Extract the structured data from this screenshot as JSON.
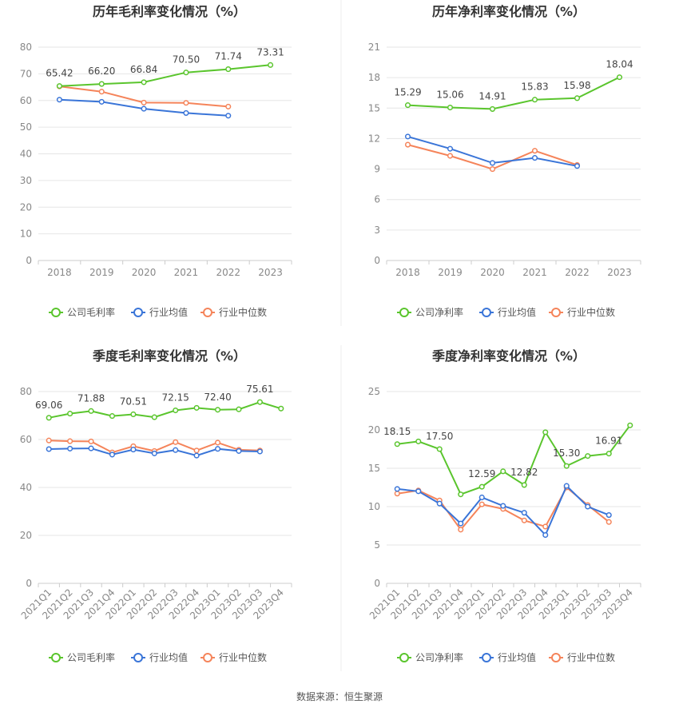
{
  "source": "数据来源：恒生聚源",
  "colors": {
    "company": "#5ac52d",
    "avg": "#3a75d8",
    "median": "#f5845a",
    "grid": "#e6e6e6",
    "axis": "#cccccc"
  },
  "legend_icon": "circle-line-marker",
  "chart_data": [
    {
      "type": "line",
      "title": "历年毛利率变化情况（%）",
      "categories": [
        "2018",
        "2019",
        "2020",
        "2021",
        "2022",
        "2023"
      ],
      "ylim": [
        0,
        80
      ],
      "yticks": [
        0,
        10,
        20,
        30,
        40,
        50,
        60,
        70,
        80
      ],
      "grid": true,
      "legend_position": "bottom",
      "series": [
        {
          "name": "公司毛利率",
          "values": [
            65.42,
            66.2,
            66.84,
            70.5,
            71.74,
            73.31
          ],
          "labels": [
            "65.42",
            "66.20",
            "66.84",
            "70.50",
            "71.74",
            "73.31"
          ]
        },
        {
          "name": "行业均值",
          "values": [
            60.3,
            59.5,
            56.9,
            55.3,
            54.3,
            null
          ]
        },
        {
          "name": "行业中位数",
          "values": [
            65.3,
            63.3,
            59.2,
            59.1,
            57.7,
            null
          ]
        }
      ]
    },
    {
      "type": "line",
      "title": "历年净利率变化情况（%）",
      "categories": [
        "2018",
        "2019",
        "2020",
        "2021",
        "2022",
        "2023"
      ],
      "ylim": [
        0,
        21
      ],
      "yticks": [
        0,
        3,
        6,
        9,
        12,
        15,
        18,
        21
      ],
      "grid": true,
      "legend_position": "bottom",
      "series": [
        {
          "name": "公司净利率",
          "values": [
            15.29,
            15.06,
            14.91,
            15.83,
            15.98,
            18.04
          ],
          "labels": [
            "15.29",
            "15.06",
            "14.91",
            "15.83",
            "15.98",
            "18.04"
          ]
        },
        {
          "name": "行业均值",
          "values": [
            12.2,
            11.0,
            9.6,
            10.1,
            9.3,
            null
          ]
        },
        {
          "name": "行业中位数",
          "values": [
            11.4,
            10.3,
            9.0,
            10.8,
            9.4,
            null
          ]
        }
      ]
    },
    {
      "type": "line",
      "title": "季度毛利率变化情况（%）",
      "categories": [
        "2021Q1",
        "2021Q2",
        "2021Q3",
        "2021Q4",
        "2022Q1",
        "2022Q2",
        "2022Q3",
        "2022Q4",
        "2023Q1",
        "2023Q2",
        "2023Q3",
        "2023Q4"
      ],
      "ylim": [
        0,
        80
      ],
      "yticks": [
        0,
        20,
        40,
        60,
        80
      ],
      "grid": true,
      "legend_position": "bottom",
      "series": [
        {
          "name": "公司毛利率",
          "values": [
            69.06,
            70.8,
            71.88,
            69.8,
            70.51,
            69.3,
            72.15,
            73.2,
            72.4,
            72.6,
            75.61,
            72.9
          ],
          "labels": [
            "69.06",
            "",
            "71.88",
            "",
            "70.51",
            "",
            "72.15",
            "",
            "72.40",
            "",
            "75.61",
            ""
          ]
        },
        {
          "name": "行业均值",
          "values": [
            56.0,
            56.2,
            56.3,
            53.7,
            55.8,
            54.2,
            55.6,
            53.3,
            56.1,
            55.2,
            55.0,
            null
          ]
        },
        {
          "name": "行业中位数",
          "values": [
            59.6,
            59.3,
            59.2,
            54.6,
            57.2,
            55.2,
            58.9,
            55.4,
            58.7,
            55.7,
            55.4,
            null
          ]
        }
      ]
    },
    {
      "type": "line",
      "title": "季度净利率变化情况（%）",
      "categories": [
        "2021Q1",
        "2021Q2",
        "2021Q3",
        "2021Q4",
        "2022Q1",
        "2022Q2",
        "2022Q3",
        "2022Q4",
        "2023Q1",
        "2023Q2",
        "2023Q3",
        "2023Q4"
      ],
      "ylim": [
        0,
        25
      ],
      "yticks": [
        0,
        5,
        10,
        15,
        20,
        25
      ],
      "grid": true,
      "legend_position": "bottom",
      "series": [
        {
          "name": "公司净利率",
          "values": [
            18.15,
            18.5,
            17.5,
            11.6,
            12.59,
            14.6,
            12.82,
            19.7,
            15.3,
            16.6,
            16.91,
            20.6
          ],
          "labels": [
            "18.15",
            "",
            "17.50",
            "",
            "12.59",
            "",
            "12.82",
            "",
            "15.30",
            "",
            "16.91",
            ""
          ]
        },
        {
          "name": "行业均值",
          "values": [
            12.3,
            12.0,
            10.4,
            7.8,
            11.2,
            10.1,
            9.2,
            6.3,
            12.7,
            10.0,
            8.9,
            null
          ]
        },
        {
          "name": "行业中位数",
          "values": [
            11.7,
            12.1,
            10.8,
            7.0,
            10.3,
            9.7,
            8.2,
            7.4,
            12.5,
            10.2,
            8.0,
            null
          ]
        }
      ]
    }
  ]
}
